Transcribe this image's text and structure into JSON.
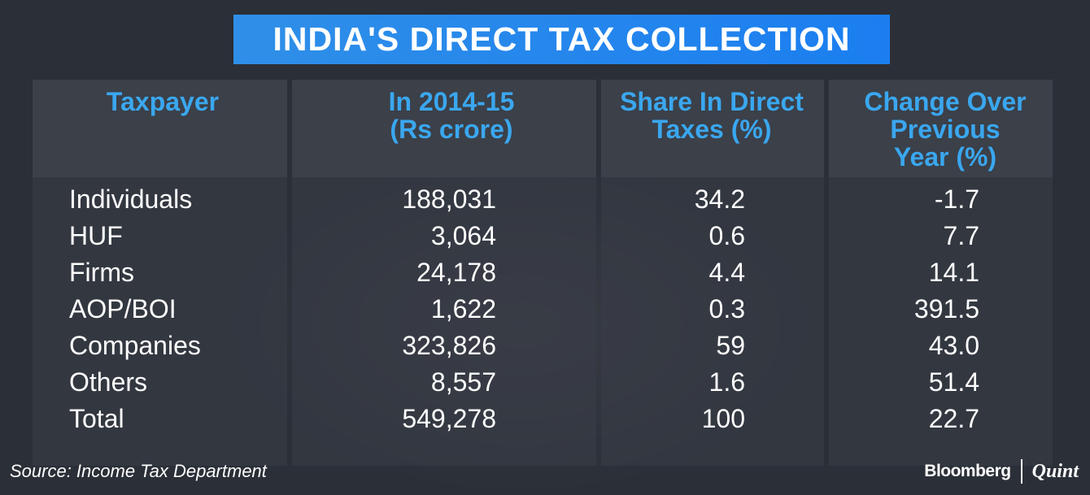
{
  "chart_data": {
    "type": "table",
    "title": "INDIA'S DIRECT TAX COLLECTION",
    "columns": [
      "Taxpayer",
      "In 2014-15 (Rs crore)",
      "Share In Direct Taxes (%)",
      "Change Over Previous Year (%)"
    ],
    "header_lines": [
      [
        "Taxpayer"
      ],
      [
        "In 2014-15",
        "(Rs crore)"
      ],
      [
        "Share In Direct",
        "Taxes (%)"
      ],
      [
        "Change Over",
        "Previous",
        "Year (%)"
      ]
    ],
    "rows": [
      [
        "Individuals",
        "188,031",
        "34.2",
        "-1.7"
      ],
      [
        "HUF",
        "3,064",
        "0.6",
        "7.7"
      ],
      [
        "Firms",
        "24,178",
        "4.4",
        "14.1"
      ],
      [
        "AOP/BOI",
        "1,622",
        "0.3",
        "391.5"
      ],
      [
        "Companies",
        "323,826",
        "59",
        "43.0"
      ],
      [
        "Others",
        "8,557",
        "1.6",
        "51.4"
      ],
      [
        "Total",
        "549,278",
        "100",
        "22.7"
      ]
    ],
    "source": "Source: Income Tax Department"
  },
  "branding": {
    "brand": "Bloomberg",
    "sub_brand": "Quint"
  },
  "colors": {
    "background": "#2b2f37",
    "title_banner": "#1b7ef0",
    "header_text": "#3aa7ef",
    "body_text": "#ffffff"
  }
}
